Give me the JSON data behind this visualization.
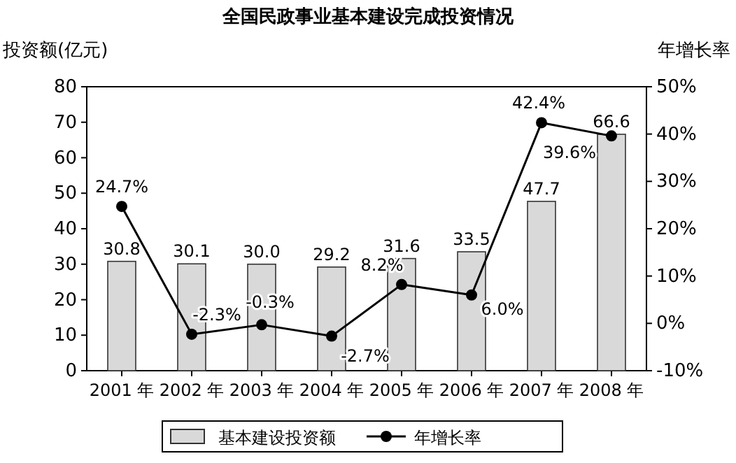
{
  "chart_data": {
    "type": "bar",
    "title": "全国民政事业基本建设完成投资情况",
    "ylabel": "投资额(亿元)",
    "y2label": "年增长率",
    "categories": [
      "2001 年",
      "2002 年",
      "2003 年",
      "2004 年",
      "2005 年",
      "2006 年",
      "2007 年",
      "2008 年"
    ],
    "series": [
      {
        "name": "基本建设投资额",
        "color": "#d9d9d9",
        "value_labels": [
          "30.8",
          "30.1",
          "30.0",
          "29.2",
          "31.6",
          "33.5",
          "47.7",
          "66.6"
        ],
        "values": [
          30.8,
          30.1,
          30.0,
          29.2,
          31.6,
          33.5,
          47.7,
          66.6
        ]
      },
      {
        "name": "年增长率",
        "type": "line",
        "axis": "y2",
        "color": "#000000",
        "marker": "circle",
        "value_labels": [
          "24.7%",
          "-2.3%",
          "-0.3%",
          "-2.7%",
          "8.2%",
          "6.0%",
          "42.4%",
          "39.6%"
        ],
        "values": [
          24.7,
          -2.3,
          -0.3,
          -2.7,
          8.2,
          6.0,
          42.4,
          39.6
        ]
      }
    ],
    "ylim": [
      0,
      80
    ],
    "yticks": [
      0,
      10,
      20,
      30,
      40,
      50,
      60,
      70,
      80
    ],
    "y2lim": [
      -10,
      50
    ],
    "y2ticks": [
      {
        "value": -10,
        "label": "-10%"
      },
      {
        "value": 0,
        "label": "0%"
      },
      {
        "value": 10,
        "label": "10%"
      },
      {
        "value": 20,
        "label": "20%"
      },
      {
        "value": 30,
        "label": "30%"
      },
      {
        "value": 40,
        "label": "40%"
      },
      {
        "value": 50,
        "label": "50%"
      }
    ],
    "data_labels": true,
    "grid": false,
    "legend": "bottom"
  }
}
